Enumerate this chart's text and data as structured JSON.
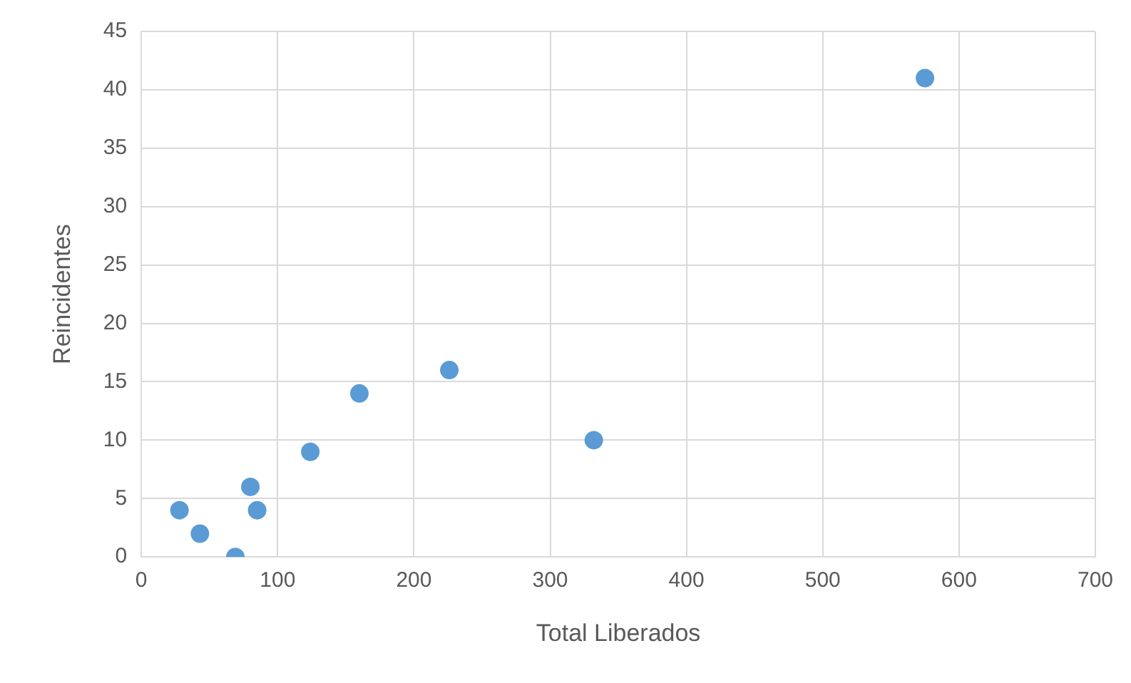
{
  "chart_data": {
    "type": "scatter",
    "xlabel": "Total Liberados",
    "ylabel": "Reincidentes",
    "x": [
      28,
      43,
      69,
      80,
      85,
      124,
      160,
      226,
      332,
      575
    ],
    "series": [
      {
        "color": "#5b9bd5",
        "values": [
          4,
          2,
          0,
          6,
          4,
          9,
          14,
          16,
          10,
          41
        ]
      }
    ],
    "xlim": [
      0,
      700
    ],
    "xticks": [
      0,
      100,
      200,
      300,
      400,
      500,
      600,
      700
    ],
    "ylim": [
      0,
      45
    ],
    "yticks": [
      0,
      5,
      10,
      15,
      20,
      25,
      30,
      35,
      40,
      45
    ],
    "grid": true,
    "legend": false,
    "marker": "circle"
  }
}
